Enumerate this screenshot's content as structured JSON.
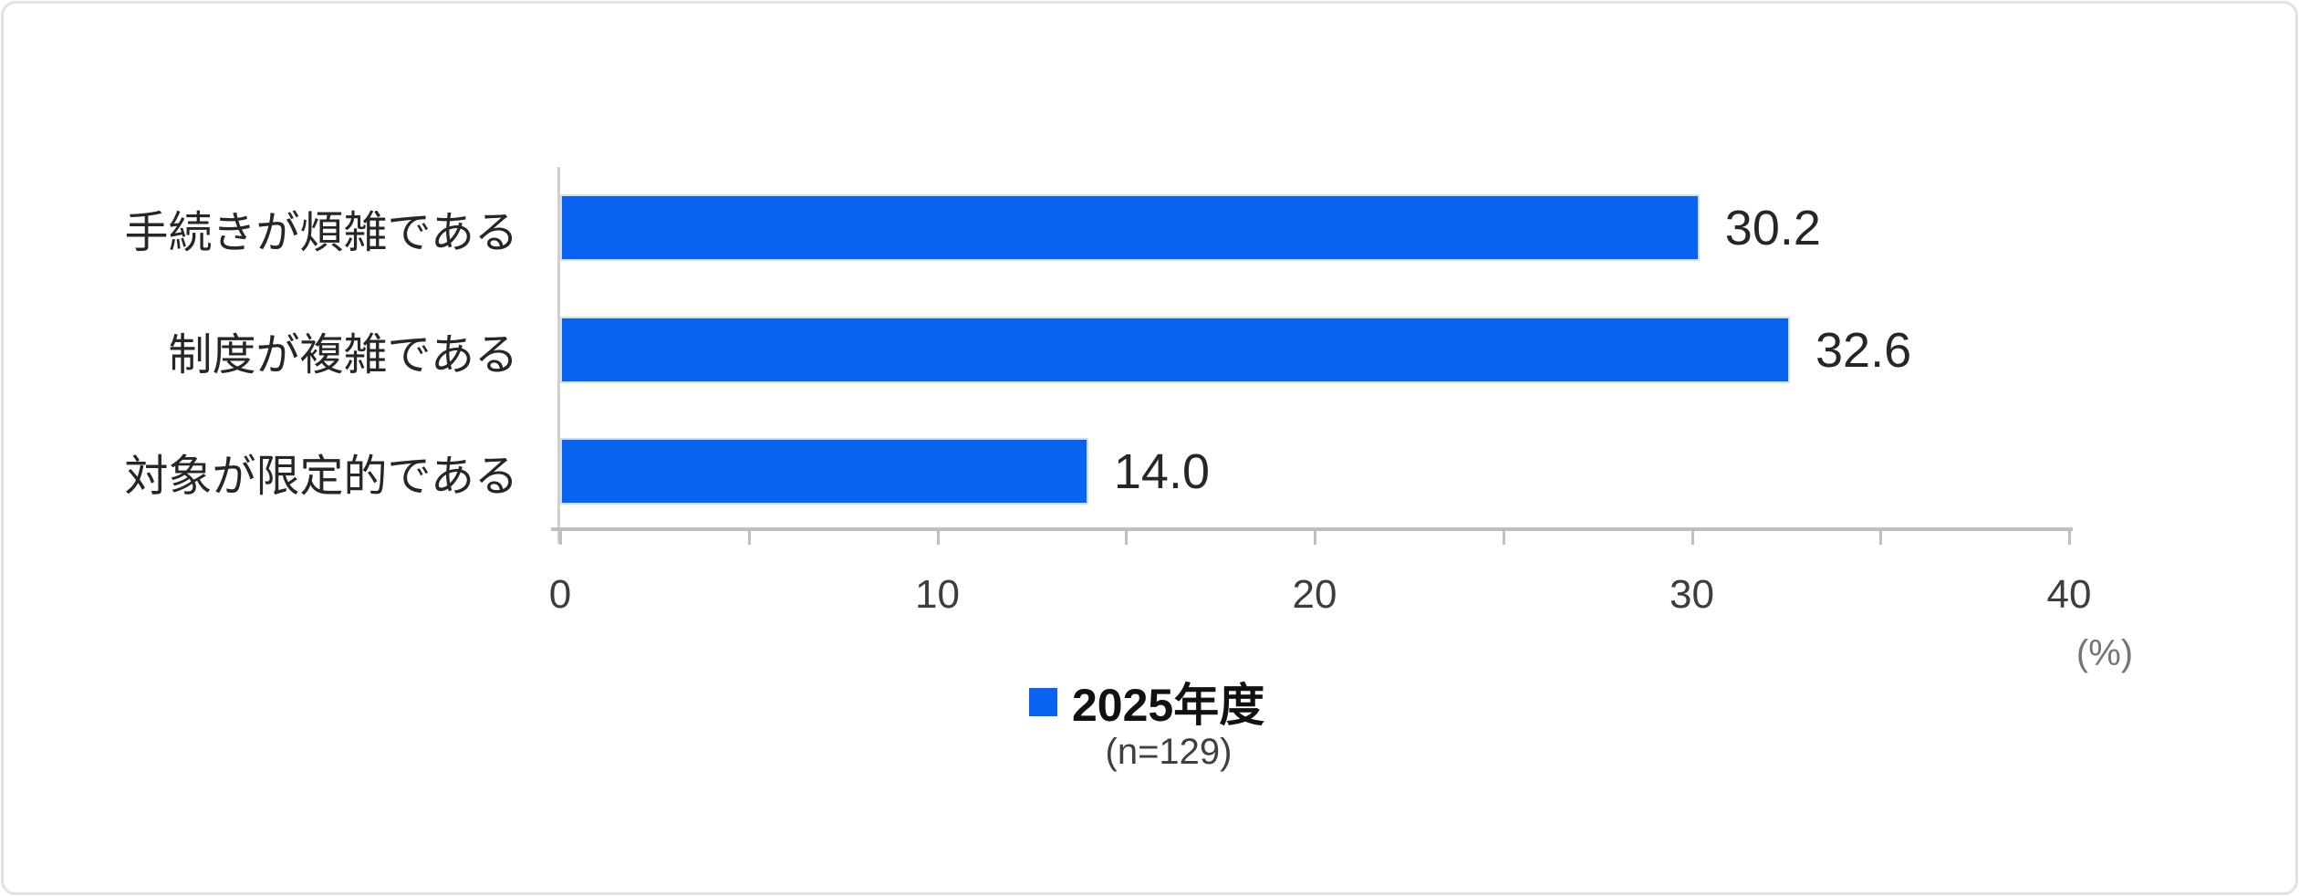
{
  "chart_data": {
    "type": "bar",
    "orientation": "horizontal",
    "title": "",
    "categories": [
      "手続きが煩雑である",
      "制度が複雑である",
      "対象が限定的である"
    ],
    "series": [
      {
        "name": "2025年度",
        "values": [
          30.2,
          32.6,
          14.0
        ]
      }
    ],
    "value_labels": [
      "30.2",
      "32.6",
      "14.0"
    ],
    "axis": {
      "min": 0,
      "max": 40,
      "major_step": 10,
      "minor_step": 5,
      "tick_labels": [
        "0",
        "10",
        "20",
        "30",
        "40"
      ],
      "unit_label": "(%)"
    },
    "legend": {
      "label": "2025年度",
      "sub_label": "(n=129)",
      "position": "bottom",
      "marker": "square"
    },
    "grid": false,
    "bar_color": "#0a63f0"
  },
  "colors": {
    "bar": "#0a63f0",
    "bar_border": "#cfe0f5",
    "axis_line": "#bfbfbf",
    "category_text": "#262626",
    "value_text": "#262626",
    "tick_text": "#3d3d3d",
    "unit_text": "#757575",
    "frame_border": "#e2e2e2",
    "background": "#ffffff"
  }
}
